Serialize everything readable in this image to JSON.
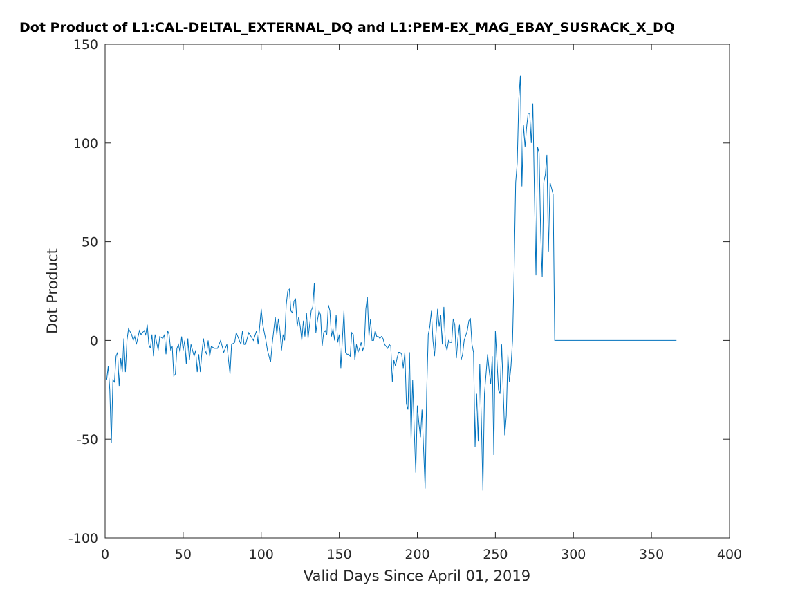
{
  "chart_data": {
    "type": "line",
    "title": "Dot Product of L1:CAL-DELTAL_EXTERNAL_DQ and L1:PEM-EX_MAG_EBAY_SUSRACK_X_DQ",
    "xlabel": "Valid Days Since April 01, 2019",
    "ylabel": "Dot Product",
    "xlim": [
      0,
      400
    ],
    "xticks": [
      0,
      50,
      100,
      150,
      200,
      250,
      300,
      350,
      400
    ],
    "ylim": [
      -100,
      150
    ],
    "yticks": [
      -100,
      -50,
      0,
      50,
      100,
      150
    ],
    "x": [
      1,
      2,
      3,
      4,
      5,
      6,
      7,
      8,
      9,
      10,
      11,
      12,
      13,
      14,
      15,
      17,
      18,
      19,
      20,
      22,
      23,
      25,
      26,
      27,
      28,
      29,
      30,
      31,
      32,
      34,
      35,
      37,
      38,
      39,
      40,
      41,
      42,
      43,
      44,
      45,
      46,
      47,
      48,
      49,
      50,
      51,
      52,
      53,
      54,
      55,
      57,
      58,
      59,
      60,
      61,
      62,
      63,
      64,
      65,
      66,
      67,
      68,
      70,
      72,
      74,
      76,
      78,
      80,
      81,
      83,
      84,
      86,
      87,
      88,
      89,
      90,
      92,
      95,
      97,
      98,
      100,
      101,
      103,
      104,
      106,
      107,
      109,
      110,
      111,
      112,
      113,
      114,
      115,
      116,
      117,
      118,
      119,
      120,
      121,
      122,
      123,
      124,
      125,
      126,
      127,
      128,
      129,
      130,
      131,
      132,
      133,
      134,
      135,
      136,
      137,
      138,
      139,
      140,
      141,
      142,
      143,
      144,
      145,
      146,
      147,
      148,
      149,
      150,
      151,
      152,
      153,
      154,
      155,
      156,
      157,
      158,
      159,
      160,
      161,
      162,
      163,
      164,
      165,
      166,
      167,
      168,
      169,
      170,
      171,
      172,
      173,
      174,
      175,
      176,
      177,
      178,
      179,
      180,
      181,
      182,
      183,
      184,
      185,
      186,
      187,
      188,
      189,
      190,
      191,
      192,
      193,
      194,
      195,
      196,
      197,
      198,
      199,
      200,
      201,
      202,
      203,
      204,
      205,
      206,
      207,
      208,
      209,
      210,
      211,
      212,
      213,
      214,
      215,
      216,
      217,
      218,
      219,
      220,
      221,
      222,
      223,
      224,
      225,
      226,
      227,
      228,
      229,
      230,
      232,
      233,
      234,
      235,
      236,
      237,
      238,
      239,
      240,
      241,
      242,
      243,
      245,
      246,
      247,
      248,
      249,
      250,
      251,
      252,
      253,
      254,
      255,
      256,
      257,
      258,
      259,
      260,
      261,
      262,
      263,
      264,
      265,
      266,
      267,
      268,
      269,
      270,
      271,
      272,
      273,
      274,
      275,
      276,
      277,
      278,
      279,
      280,
      281,
      282,
      283,
      284,
      285,
      286,
      287,
      288,
      366
    ],
    "series": [
      {
        "color": "#0072bd",
        "values": [
          -20,
          -13,
          -25,
          -52,
          -20,
          -21,
          -8,
          -6,
          -23,
          -9,
          -16,
          1,
          -16,
          0,
          6,
          3,
          0,
          2,
          -2,
          5,
          3,
          5,
          3,
          8,
          -2,
          -4,
          3,
          -8,
          3,
          -5,
          2,
          1,
          3,
          -7,
          5,
          3,
          -5,
          -3,
          -18,
          -17,
          -4,
          -2,
          -6,
          2,
          -5,
          0,
          -12,
          1,
          -10,
          -2,
          -8,
          -5,
          -16,
          -7,
          -16,
          -6,
          1,
          -5,
          -7,
          0,
          -8,
          -3,
          -4,
          -4,
          0,
          -6,
          -2,
          -17,
          -2,
          -1,
          4,
          0,
          -2,
          5,
          -2,
          -2,
          4,
          0,
          5,
          -2,
          16,
          8,
          0,
          -5,
          -11,
          -2,
          12,
          3,
          11,
          5,
          -5,
          3,
          0,
          18,
          25,
          26,
          15,
          14,
          20,
          21,
          7,
          12,
          7,
          0,
          10,
          2,
          14,
          1,
          8,
          15,
          17,
          29,
          4,
          10,
          15,
          13,
          -3,
          4,
          5,
          3,
          18,
          15,
          2,
          6,
          0,
          13,
          -1,
          3,
          -14,
          1,
          15,
          -6,
          -7,
          -7,
          -8,
          4,
          3,
          -10,
          -2,
          -6,
          -4,
          -1,
          -5,
          -3,
          16,
          22,
          2,
          11,
          0,
          0,
          5,
          2,
          2,
          1,
          2,
          1,
          -2,
          -3,
          -4,
          -2,
          -3,
          -21,
          -10,
          -13,
          -9,
          -6,
          -6,
          -7,
          -14,
          -6,
          -32,
          -35,
          -6,
          -50,
          -20,
          -45,
          -67,
          -33,
          -42,
          -49,
          -35,
          -55,
          -75,
          -26,
          3,
          7,
          15,
          0,
          -8,
          4,
          16,
          7,
          13,
          -2,
          17,
          -2,
          -5,
          0,
          -1,
          -1,
          11,
          8,
          -9,
          1,
          8,
          -10,
          -7,
          0,
          5,
          10,
          11,
          -2,
          -6,
          -54,
          -27,
          -51,
          -12,
          -40,
          -76,
          -27,
          -7,
          -15,
          -22,
          -8,
          -58,
          5,
          -10,
          -25,
          -27,
          -2,
          -25,
          -48,
          -38,
          -7,
          -21,
          -13,
          0,
          35,
          80,
          90,
          122,
          134,
          78,
          109,
          98,
          108,
          115,
          115,
          100,
          120,
          75,
          33,
          98,
          95,
          55,
          32,
          80,
          84,
          94,
          45,
          80,
          77,
          74,
          0,
          0
        ]
      }
    ]
  }
}
